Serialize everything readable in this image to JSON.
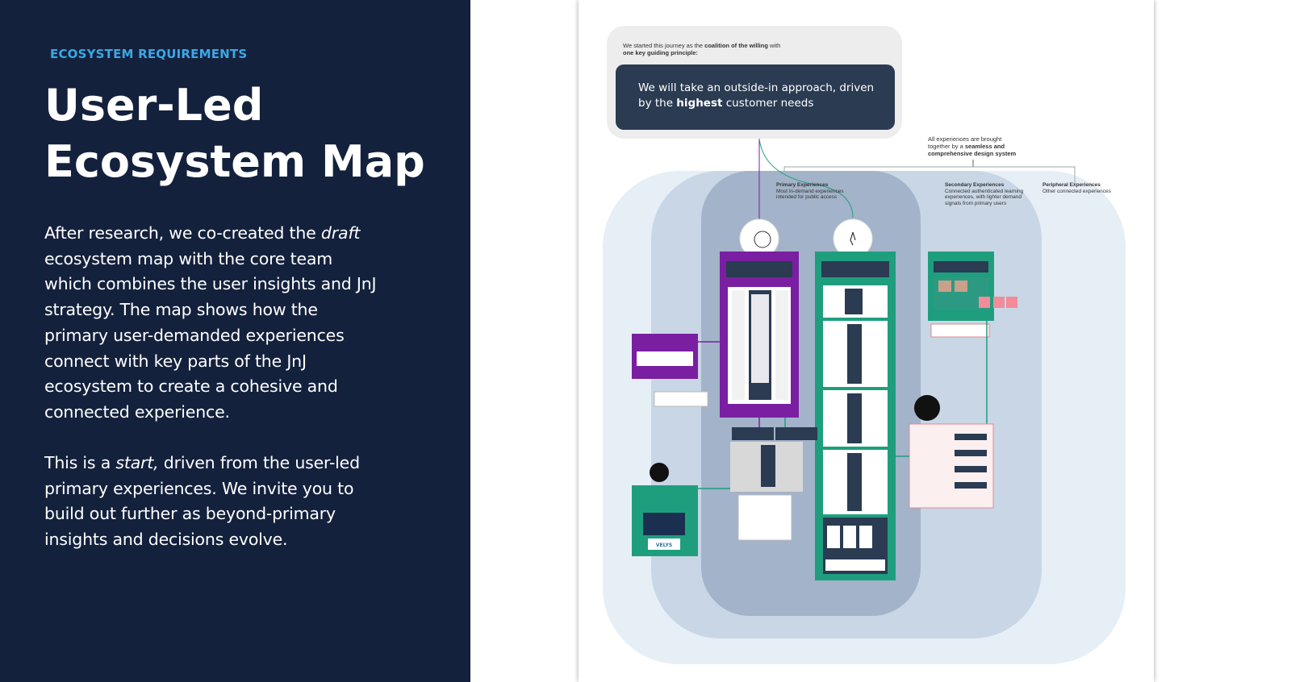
{
  "left": {
    "kicker": "ECOSYSTEM REQUIREMENTS",
    "title": "User-Led Ecosystem Map",
    "p1_a": "After research, we co-created the ",
    "p1_em": "draft",
    "p1_b": " ecosystem map with the core team which combines the user insights and JnJ strategy. The map shows how the primary user-demanded experiences connect with key parts of the JnJ ecosystem to create a cohesive and connected experience.",
    "p2_a": "This is a ",
    "p2_em": "start,",
    "p2_b": " driven from the user-led primary experiences. We invite you to build out further as beyond-primary insights and decisions evolve."
  },
  "map": {
    "principle_intro_a": "We started this journey as the ",
    "principle_intro_b": "coalition of the willing",
    "principle_intro_c": " with ",
    "principle_intro_d": "one key guiding principle:",
    "principle_a": "We will take an outside-in approach, driven by the ",
    "principle_b": "highest",
    "principle_c": " customer needs",
    "system_note_a": "All experiences are brought together by a ",
    "system_note_b": "seamless and comprehensive design system",
    "primary_head": "Primary Experiences",
    "primary_sub": "Most in-demand experiences intended for public access",
    "secondary_head": "Secondary Experiences",
    "secondary_sub": "Connected authenticated learning experiences, with lighter demand signals from primary users",
    "peripheral_head": "Peripheral Experiences",
    "peripheral_sub": "Other connected experiences",
    "velys_label": "VELYS"
  },
  "colors": {
    "navy": "#14213d",
    "accent_blue": "#3aa8e6",
    "purple": "#7a1fa2",
    "teal": "#1f9e7e",
    "ring_outer": "#e6eef6",
    "ring_mid": "#c9d6e5",
    "ring_inner": "#a3b3c9"
  }
}
